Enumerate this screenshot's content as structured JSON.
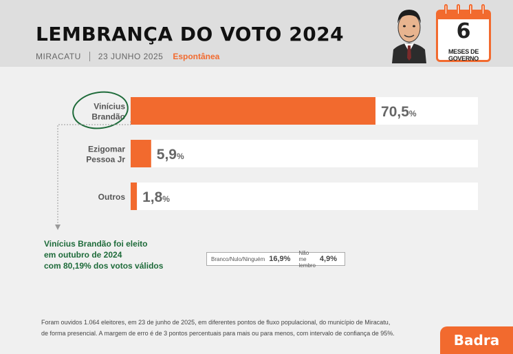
{
  "header": {
    "title": "LEMBRANÇA DO VOTO 2024",
    "city": "MIRACATU",
    "date": "23 JUNHO 2025",
    "type": "Espontânea"
  },
  "calendar": {
    "number": "6",
    "label": "MESES DE GOVERNO"
  },
  "chart_data": {
    "type": "bar",
    "orientation": "horizontal",
    "categories": [
      [
        "Vinícius",
        "Brandão"
      ],
      [
        "Ezigomar",
        "Pessoa Jr"
      ],
      [
        "Outros"
      ]
    ],
    "values": [
      70.5,
      5.9,
      1.8
    ],
    "value_labels": [
      "70,5",
      "5,9",
      "1,8"
    ],
    "unit": "%",
    "xlim": [
      0,
      100
    ],
    "colors": {
      "bar": "#f26a2e",
      "track": "#ffffff",
      "value_text": "#666666"
    },
    "highlight": "Vinícius Brandão"
  },
  "note": {
    "lines": [
      "Vinícius Brandão foi eleito",
      "em outubro de 2024",
      "com 80,19% dos votos válidos"
    ]
  },
  "other_answers": {
    "label_1": "Branco/Nulo/Ninguém",
    "value_1": "16,9%",
    "label_2": "Não me lembro",
    "value_2": "4,9%"
  },
  "footer": {
    "line1": "Foram ouvidos 1.064 eleitores, em 23 de junho de 2025, em diferentes pontos de fluxo populacional, do município de Miracatu,",
    "line2": "de forma presencial. A margem de erro é de 3 pontos percentuais para mais ou para menos, com intervalo de confiança de 95%."
  },
  "brand": {
    "name": "Badra",
    "color": "#f26a2e"
  }
}
